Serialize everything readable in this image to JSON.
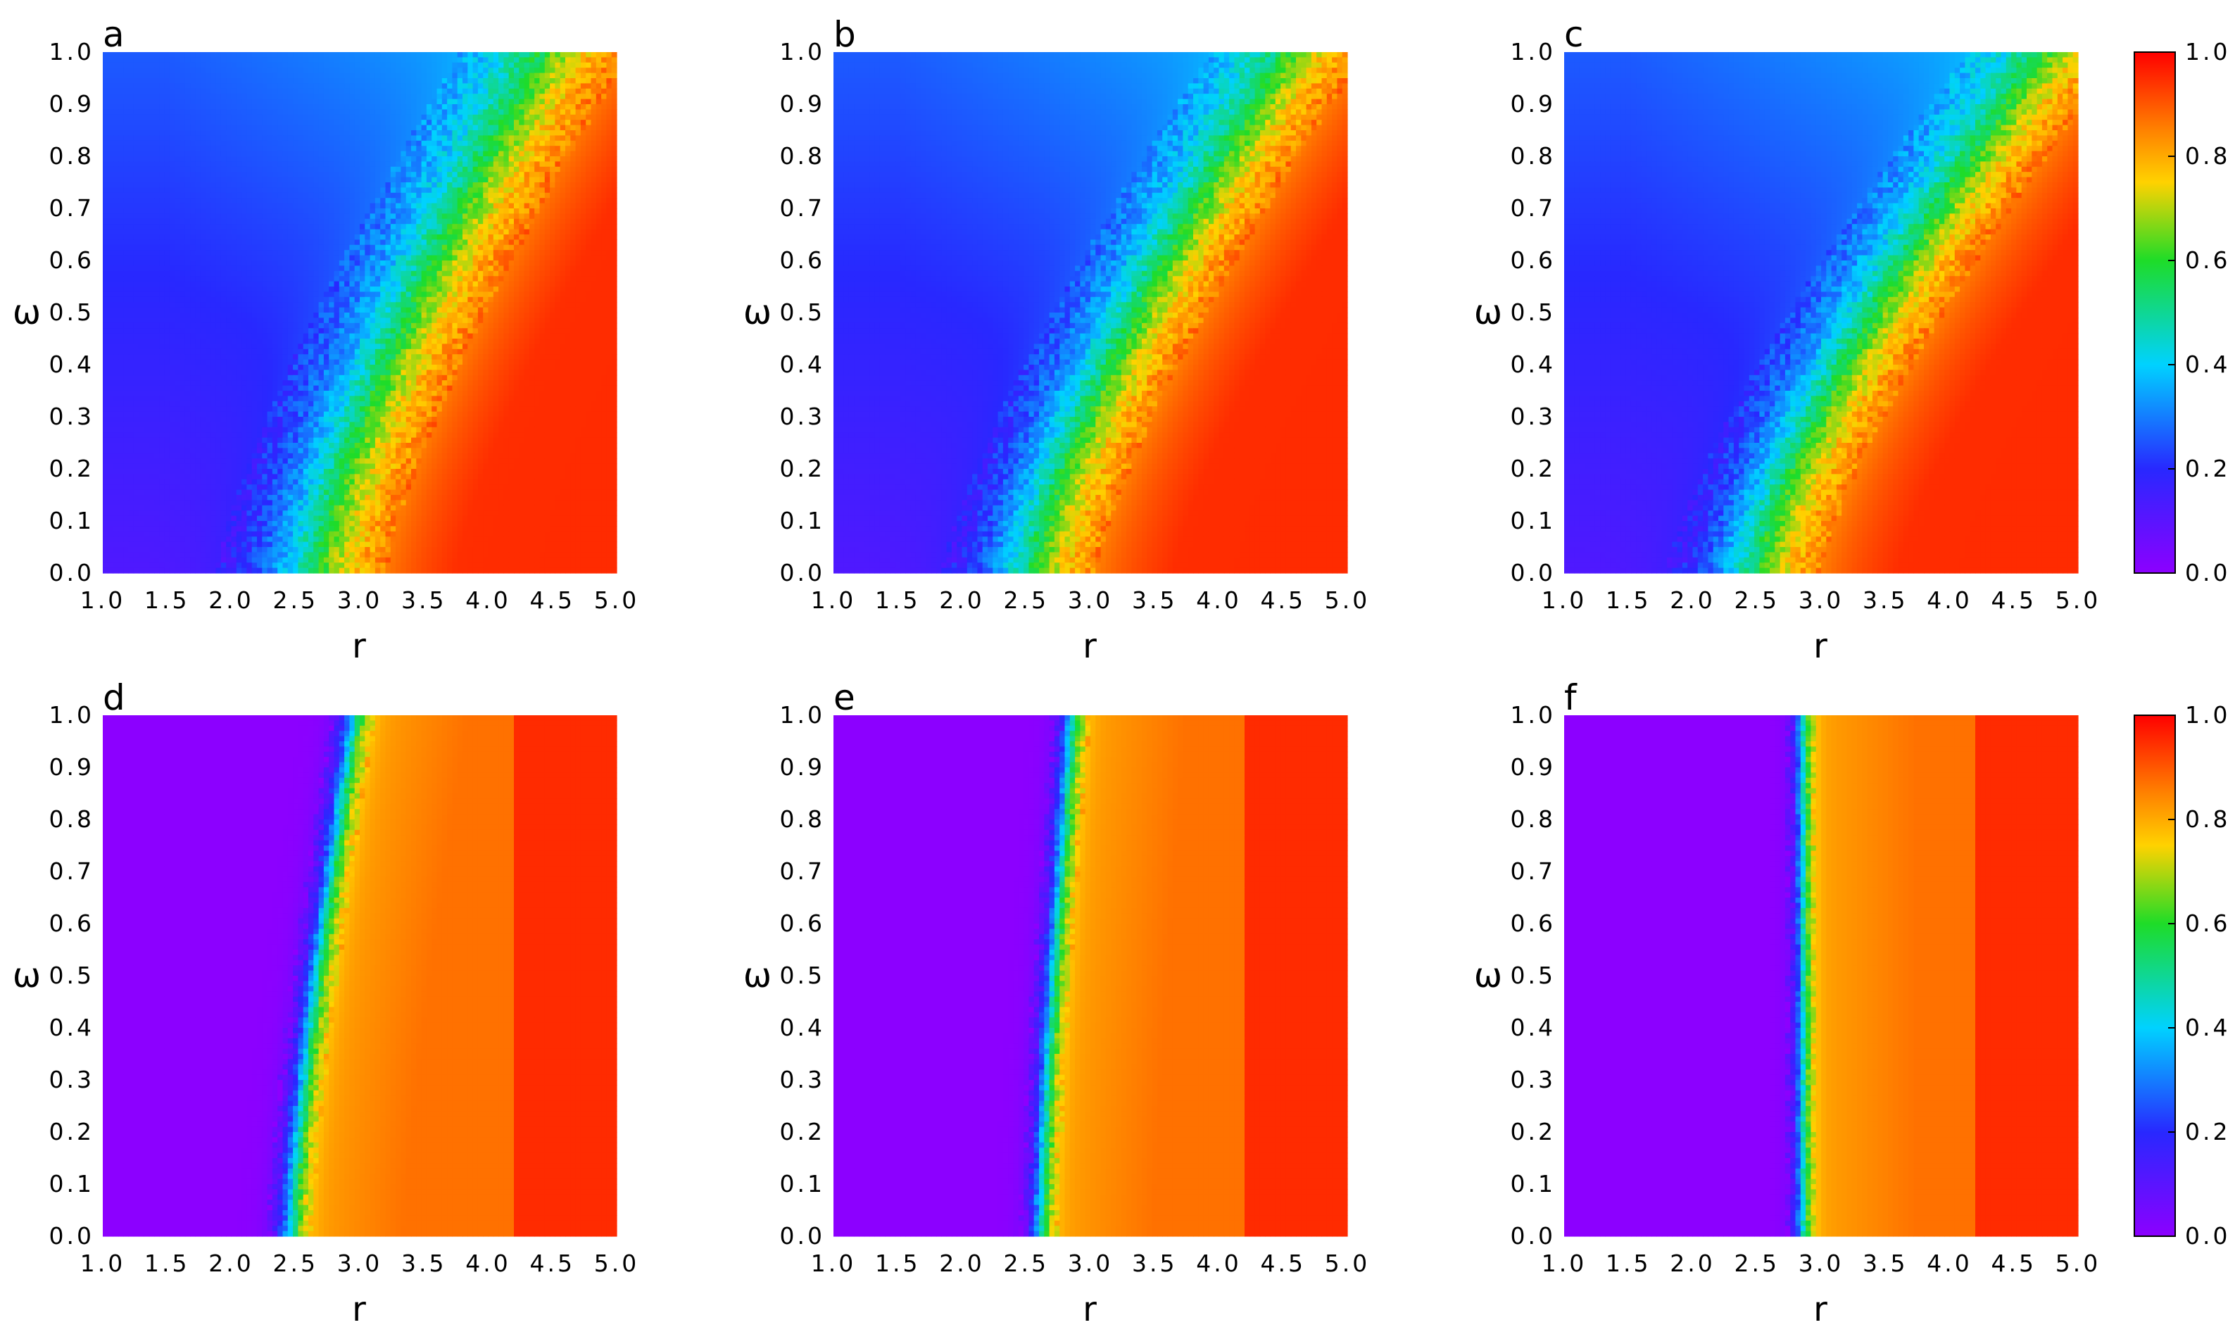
{
  "chart_data": [
    {
      "type": "heatmap",
      "panel_label": "a",
      "xlabel": "r",
      "ylabel": "ω",
      "xlim": [
        1.0,
        5.0
      ],
      "ylim": [
        0.0,
        1.0
      ],
      "shape": "top-smooth",
      "boundary": {
        "r_at_bottom": 2.55,
        "r_at_top": 4.45,
        "width": 0.22
      }
    },
    {
      "type": "heatmap",
      "panel_label": "b",
      "xlabel": "r",
      "ylabel": "ω",
      "xlim": [
        1.0,
        5.0
      ],
      "ylim": [
        0.0,
        1.0
      ],
      "shape": "top-smooth",
      "boundary": {
        "r_at_bottom": 2.45,
        "r_at_top": 4.55,
        "width": 0.2
      }
    },
    {
      "type": "heatmap",
      "panel_label": "c",
      "xlabel": "r",
      "ylabel": "ω",
      "xlim": [
        1.0,
        5.0
      ],
      "ylim": [
        0.0,
        1.0
      ],
      "shape": "top-smooth",
      "boundary": {
        "r_at_bottom": 2.4,
        "r_at_top": 4.75,
        "width": 0.2
      }
    },
    {
      "type": "heatmap",
      "panel_label": "d",
      "xlabel": "r",
      "ylabel": "ω",
      "xlim": [
        1.0,
        5.0
      ],
      "ylim": [
        0.0,
        1.0
      ],
      "shape": "bottom-sharp",
      "boundary": {
        "r_at_bottom": 2.45,
        "r_at_top": 2.95,
        "width": 0.06
      }
    },
    {
      "type": "heatmap",
      "panel_label": "e",
      "xlabel": "r",
      "ylabel": "ω",
      "xlim": [
        1.0,
        5.0
      ],
      "ylim": [
        0.0,
        1.0
      ],
      "shape": "bottom-sharp",
      "boundary": {
        "r_at_bottom": 2.6,
        "r_at_top": 2.85,
        "width": 0.05
      }
    },
    {
      "type": "heatmap",
      "panel_label": "f",
      "xlabel": "r",
      "ylabel": "ω",
      "xlim": [
        1.0,
        5.0
      ],
      "ylim": [
        0.0,
        1.0
      ],
      "shape": "bottom-sharp",
      "boundary": {
        "r_at_bottom": 2.85,
        "r_at_top": 2.85,
        "width": 0.04
      }
    }
  ],
  "x_ticks": [
    "1.0",
    "1.5",
    "2.0",
    "2.5",
    "3.0",
    "3.5",
    "4.0",
    "4.5",
    "5.0"
  ],
  "y_ticks": [
    "0.0",
    "0.1",
    "0.2",
    "0.3",
    "0.4",
    "0.5",
    "0.6",
    "0.7",
    "0.8",
    "0.9",
    "1.0"
  ],
  "colorbars": [
    {
      "range": [
        0.0,
        1.0
      ],
      "ticks": [
        "0.0",
        "0.2",
        "0.4",
        "0.6",
        "0.8",
        "1.0"
      ],
      "colormap": "rainbow (purple → blue → cyan → green → yellow → orange → red)"
    },
    {
      "range": [
        0.0,
        1.0
      ],
      "ticks": [
        "0.0",
        "0.2",
        "0.4",
        "0.6",
        "0.8",
        "1.0"
      ],
      "colormap": "rainbow (purple → blue → cyan → green → yellow → orange → red)"
    }
  ],
  "colors": {
    "axis": "#000000",
    "background": "#ffffff"
  }
}
